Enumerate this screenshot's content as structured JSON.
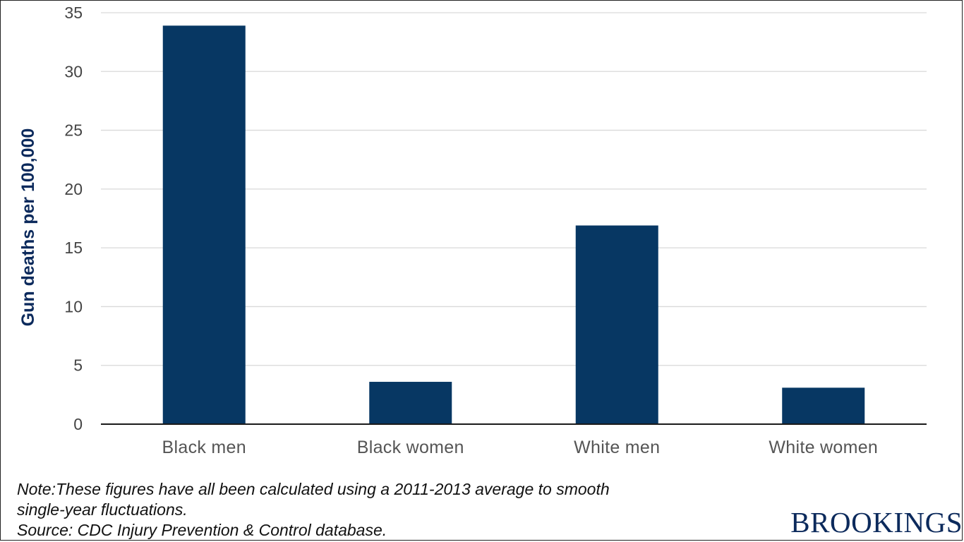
{
  "chart_data": {
    "type": "bar",
    "categories": [
      "Black men",
      "Black women",
      "White men",
      "White women"
    ],
    "values": [
      33.9,
      3.6,
      16.9,
      3.1
    ],
    "title": "",
    "xlabel": "",
    "ylabel": "Gun deaths per 100,000",
    "ylim": [
      0,
      35
    ],
    "yticks": [
      0,
      5,
      10,
      15,
      20,
      25,
      30,
      35
    ],
    "grid": true,
    "bar_color": "#073763"
  },
  "notes": {
    "line1": "Note:These figures have all been calculated using a 2011-2013 average to smooth",
    "line2": "single-year fluctuations.",
    "line3": "Source: CDC Injury Prevention & Control database."
  },
  "brand": "BROOKINGS"
}
